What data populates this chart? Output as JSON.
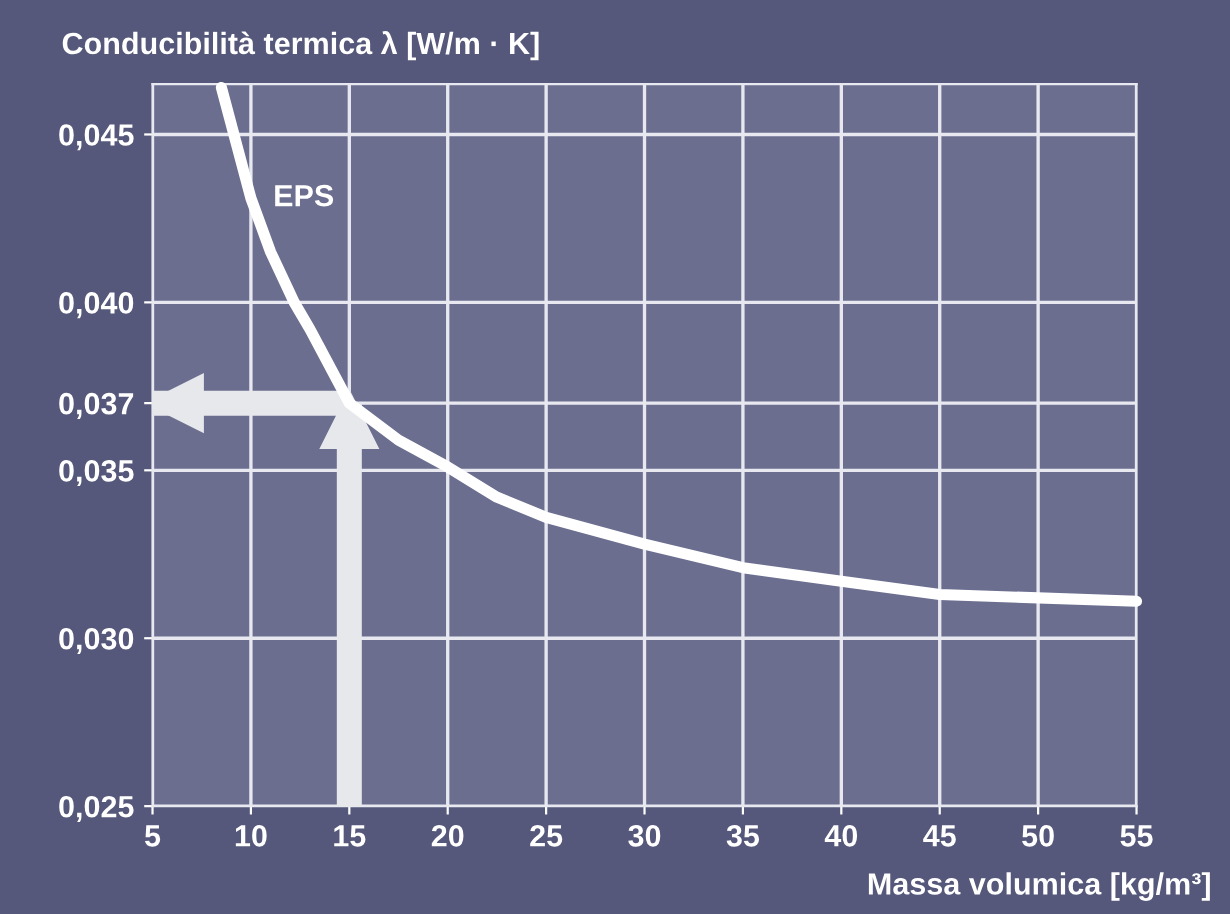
{
  "chart_data": {
    "type": "line",
    "xlabel": "Massa volumica [kg/m³]",
    "ylabel": "Conducibilità termica λ [W/m · K]",
    "x": [
      8.5,
      10,
      11,
      12.2,
      13,
      15,
      17.5,
      20,
      22.5,
      25,
      30,
      35,
      40,
      45,
      50,
      55
    ],
    "series": [
      {
        "name": "EPS",
        "color": "#ffffff",
        "values": [
          0.0464,
          0.0431,
          0.0415,
          0.04,
          0.0392,
          0.037,
          0.0359,
          0.0351,
          0.0342,
          0.0336,
          0.0328,
          0.0321,
          0.0317,
          0.0313,
          0.0312,
          0.0311
        ]
      }
    ],
    "xlim": [
      5,
      55
    ],
    "ylim": [
      0.025,
      0.0465
    ],
    "xticks": [
      5,
      10,
      15,
      20,
      25,
      30,
      35,
      40,
      45,
      50,
      55
    ],
    "yticks": [
      {
        "value": 0.025,
        "label": "0,025"
      },
      {
        "value": 0.03,
        "label": "0,030"
      },
      {
        "value": 0.035,
        "label": "0,035"
      },
      {
        "value": 0.037,
        "label": "0,037"
      },
      {
        "value": 0.04,
        "label": "0,040"
      },
      {
        "value": 0.045,
        "label": "0,045"
      }
    ],
    "grid": true,
    "marker": "none",
    "line_style": "solid",
    "ref_lines": [
      {
        "axis": "x",
        "value": 15,
        "color": "#e6e8ec"
      },
      {
        "axis": "y",
        "value": 0.037,
        "color": "#e6e8ec"
      }
    ]
  }
}
